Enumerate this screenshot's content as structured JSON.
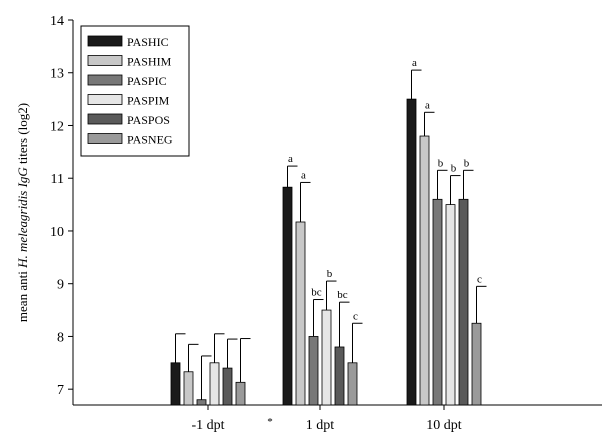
{
  "chart_data": {
    "type": "bar",
    "ylabel_parts": [
      "mean anti ",
      "H. meleagridis IgG",
      " titers (log2)"
    ],
    "ylim": [
      6.7,
      14
    ],
    "yticks": [
      7,
      8,
      9,
      10,
      11,
      12,
      13,
      14
    ],
    "categories": [
      "-1 dpt",
      "1 dpt",
      "10 dpt"
    ],
    "x_marker": "*",
    "legend_position": "top-left",
    "series": [
      {
        "name": "PASHIC",
        "color": "#1a1a1a",
        "values": [
          7.5,
          10.83,
          12.5
        ],
        "errors": [
          0.55,
          0.4,
          0.55
        ],
        "labels": [
          "",
          "a",
          "a"
        ]
      },
      {
        "name": "PASHIM",
        "color": "#c8c8c8",
        "values": [
          7.33,
          10.17,
          11.8
        ],
        "errors": [
          0.52,
          0.75,
          0.45
        ],
        "labels": [
          "",
          "a",
          "a"
        ]
      },
      {
        "name": "PASPIC",
        "color": "#787878",
        "values": [
          6.8,
          8.0,
          10.6
        ],
        "errors": [
          0.83,
          0.7,
          0.55
        ],
        "labels": [
          "",
          "bc",
          "b"
        ]
      },
      {
        "name": "PASPIM",
        "color": "#e6e6e6",
        "values": [
          7.5,
          8.5,
          10.5
        ],
        "errors": [
          0.55,
          0.55,
          0.55
        ],
        "labels": [
          "",
          "b",
          "b"
        ]
      },
      {
        "name": "PASPOS",
        "color": "#5a5a5a",
        "values": [
          7.4,
          7.8,
          10.6
        ],
        "errors": [
          0.55,
          0.85,
          0.55
        ],
        "labels": [
          "",
          "bc",
          "b"
        ]
      },
      {
        "name": "PASNEG",
        "color": "#9a9a9a",
        "values": [
          7.13,
          7.5,
          8.25
        ],
        "errors": [
          0.83,
          0.75,
          0.7
        ],
        "labels": [
          "",
          "c",
          "c"
        ]
      }
    ]
  }
}
